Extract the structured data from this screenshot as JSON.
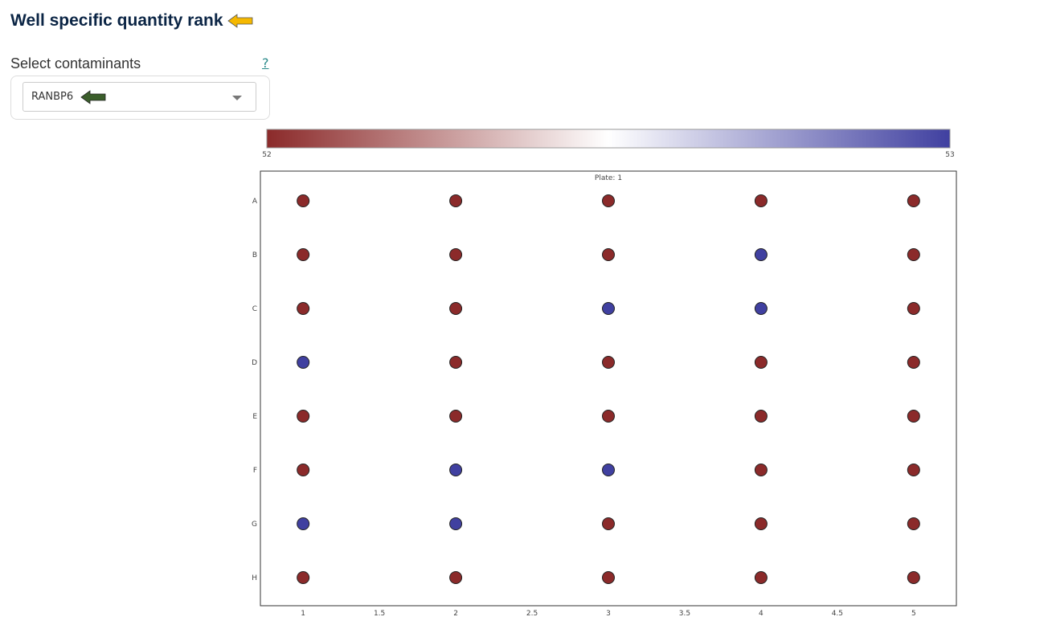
{
  "header": {
    "title": "Well specific quantity rank",
    "arrow_color": "#f5b800"
  },
  "selector": {
    "label": "Select contaminants",
    "help": "?",
    "value": "RANBP6",
    "arrow_color": "#3b5e2b"
  },
  "chart_data": {
    "type": "scatter",
    "title": "Plate: 1",
    "colorscale": {
      "min": 52,
      "max": 53,
      "min_label": "52",
      "max_label": "53",
      "low_color": "#8b2a2a",
      "mid_color": "#ffffff",
      "high_color": "#4040a0"
    },
    "xlim": [
      0.72,
      5.28
    ],
    "x_ticks": [
      "1",
      "1.5",
      "2",
      "2.5",
      "3",
      "3.5",
      "4",
      "4.5",
      "5"
    ],
    "rows": [
      "A",
      "B",
      "C",
      "D",
      "E",
      "F",
      "G",
      "H"
    ],
    "columns": [
      1,
      2,
      3,
      4,
      5
    ],
    "values": [
      [
        52,
        52,
        52,
        52,
        52
      ],
      [
        52,
        52,
        52,
        53,
        52
      ],
      [
        52,
        52,
        53,
        53,
        52
      ],
      [
        53,
        52,
        52,
        52,
        52
      ],
      [
        52,
        52,
        52,
        52,
        52
      ],
      [
        52,
        53,
        53,
        52,
        52
      ],
      [
        53,
        53,
        52,
        52,
        52
      ],
      [
        52,
        52,
        52,
        52,
        52
      ]
    ],
    "grid": false
  }
}
